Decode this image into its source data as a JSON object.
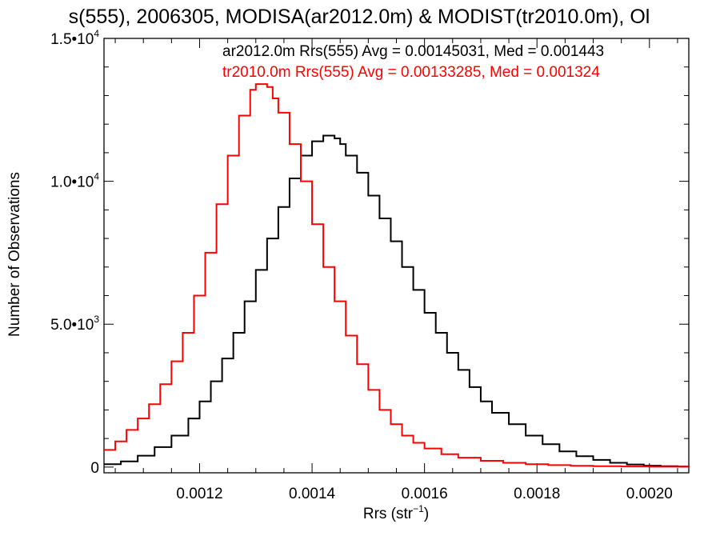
{
  "chart_data": {
    "type": "line",
    "title": "s(555), 2006305, MODISA(ar2012.0m) & MODIST(tr2010.0m), Ol",
    "xlabel": "Rrs (str",
    "xlabel_sup": "−1",
    "xlabel_close": ")",
    "ylabel": "Number of Observations",
    "xlim": [
      0.00103,
      0.00207
    ],
    "ylim": [
      -200,
      15000
    ],
    "xticks": [
      {
        "value": 0.0012,
        "label": "0.0012"
      },
      {
        "value": 0.0014,
        "label": "0.0014"
      },
      {
        "value": 0.0016,
        "label": "0.0016"
      },
      {
        "value": 0.0018,
        "label": "0.0018"
      },
      {
        "value": 0.002,
        "label": "0.0020"
      }
    ],
    "yticks": [
      {
        "value": 0,
        "mant": "0",
        "exp": ""
      },
      {
        "value": 5000,
        "mant": "5.0•10",
        "exp": "3"
      },
      {
        "value": 10000,
        "mant": "1.0•10",
        "exp": "4"
      },
      {
        "value": 15000,
        "mant": "1.5•10",
        "exp": "4"
      }
    ],
    "grid": false,
    "legend_placement": "top-right",
    "series": [
      {
        "name": "ar2012.0m Rrs(555) Avg = 0.00145031, Med = 0.001443",
        "color": "#000000",
        "x": [
          0.00103,
          0.00106,
          0.00109,
          0.00112,
          0.00115,
          0.00118,
          0.0012,
          0.00122,
          0.00124,
          0.00126,
          0.00128,
          0.0013,
          0.00132,
          0.00134,
          0.00136,
          0.00138,
          0.0014,
          0.00142,
          0.00143,
          0.00144,
          0.00145,
          0.00146,
          0.00148,
          0.0015,
          0.00152,
          0.00154,
          0.00156,
          0.00158,
          0.0016,
          0.00162,
          0.00164,
          0.00166,
          0.00168,
          0.0017,
          0.00172,
          0.00175,
          0.00178,
          0.00181,
          0.00184,
          0.00187,
          0.0019,
          0.00193,
          0.00196,
          0.00199,
          0.00202,
          0.00205,
          0.00207
        ],
        "y": [
          100,
          200,
          400,
          700,
          1100,
          1700,
          2300,
          3000,
          3800,
          4700,
          5800,
          6900,
          8000,
          9100,
          10100,
          10900,
          11400,
          11600,
          11600,
          11500,
          11300,
          10900,
          10300,
          9500,
          8700,
          7900,
          7000,
          6200,
          5400,
          4700,
          4000,
          3400,
          2800,
          2300,
          1900,
          1500,
          1100,
          800,
          550,
          380,
          250,
          150,
          90,
          50,
          30,
          20,
          15
        ]
      },
      {
        "name": "tr2010.0m Rrs(555) Avg = 0.00133285, Med = 0.001324",
        "color": "#ff0000",
        "x": [
          0.00103,
          0.00105,
          0.00107,
          0.00109,
          0.00111,
          0.00113,
          0.00115,
          0.00117,
          0.00119,
          0.00121,
          0.00123,
          0.00125,
          0.00127,
          0.00129,
          0.0013,
          0.00131,
          0.00132,
          0.00133,
          0.00134,
          0.00136,
          0.00138,
          0.0014,
          0.00142,
          0.00144,
          0.00146,
          0.00148,
          0.0015,
          0.00152,
          0.00154,
          0.00156,
          0.00158,
          0.0016,
          0.00163,
          0.00166,
          0.0017,
          0.00174,
          0.00178,
          0.00182,
          0.00186,
          0.0019,
          0.00195,
          0.002,
          0.00207
        ],
        "y": [
          600,
          900,
          1300,
          1700,
          2200,
          2900,
          3700,
          4700,
          6000,
          7500,
          9200,
          10900,
          12300,
          13200,
          13400,
          13400,
          13300,
          12900,
          12400,
          11300,
          10000,
          8500,
          7000,
          5800,
          4600,
          3600,
          2700,
          2000,
          1500,
          1100,
          850,
          650,
          450,
          330,
          220,
          150,
          100,
          70,
          45,
          30,
          20,
          12,
          8
        ]
      }
    ]
  }
}
